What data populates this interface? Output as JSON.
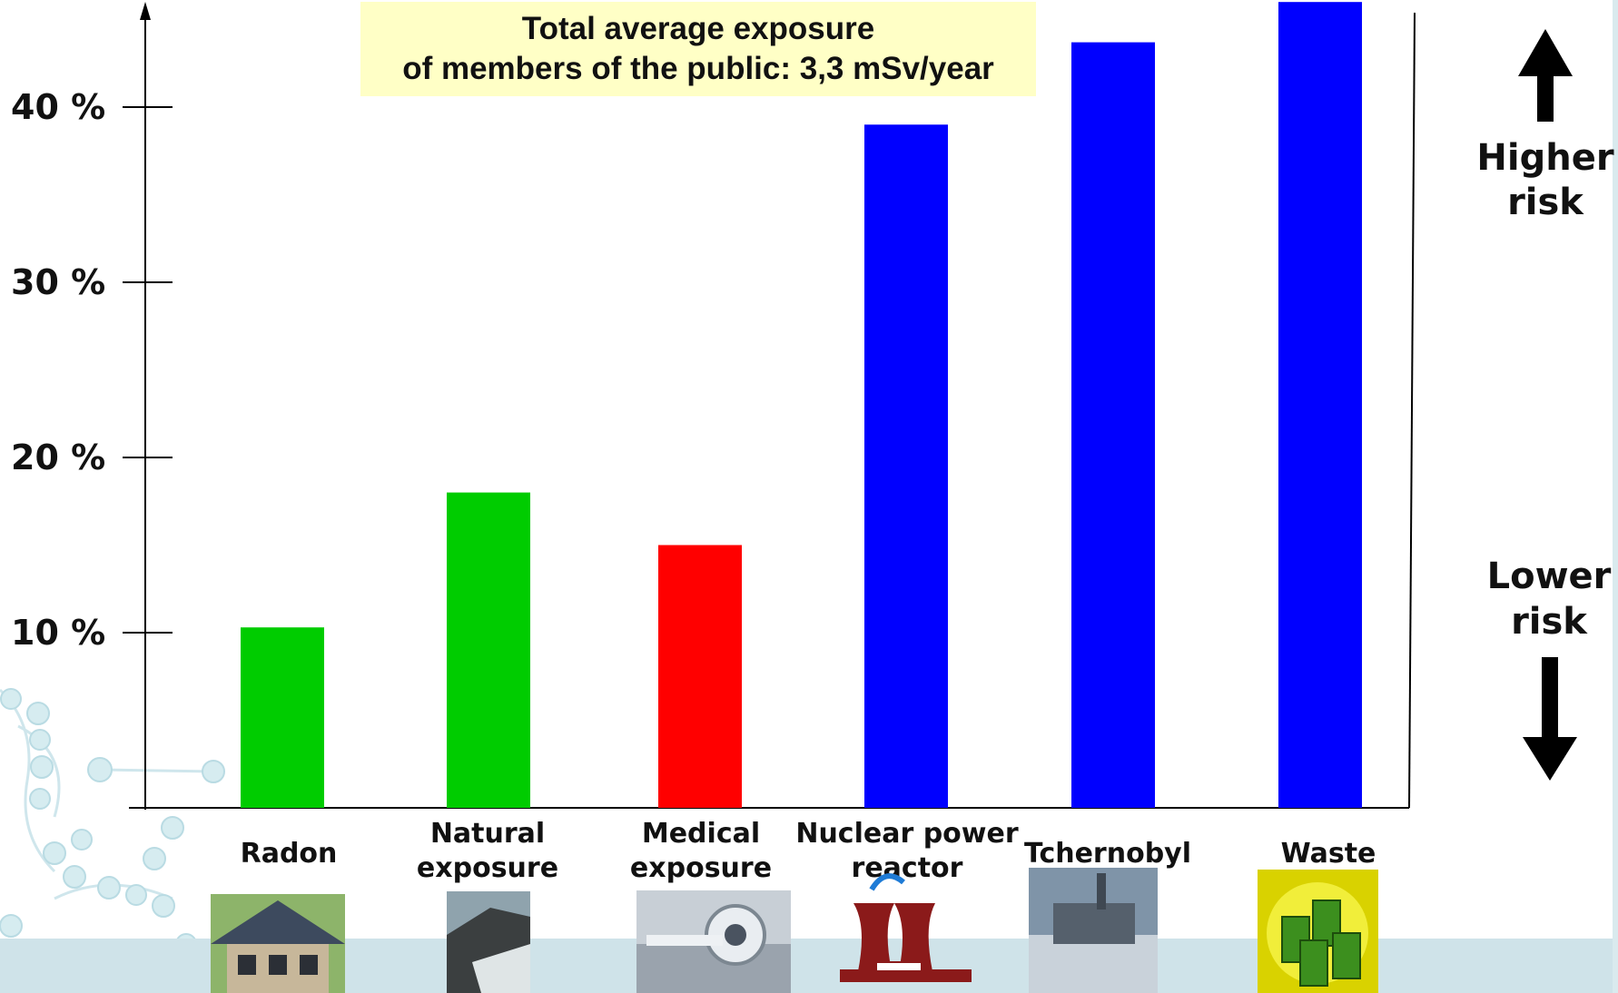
{
  "chart_data": {
    "type": "bar",
    "title": [
      "Total average exposure",
      "of members of the public: 3,3 mSv/year"
    ],
    "yticks": [
      "10 %",
      "20 %",
      "30 %",
      "40 %"
    ],
    "ytick_values": [
      10,
      20,
      30,
      40
    ],
    "ylim": [
      0,
      46
    ],
    "categories": [
      [
        "Radon"
      ],
      [
        "Natural",
        "exposure"
      ],
      [
        "Medical",
        "exposure"
      ],
      [
        "Nuclear power",
        "reactor"
      ],
      [
        "Tchernobyl"
      ],
      [
        "Waste"
      ]
    ],
    "values": [
      10.3,
      18.0,
      15.0,
      39.0,
      43.7,
      46.0
    ],
    "bar_colors": [
      "#00cc00",
      "#00cc00",
      "#ff0000",
      "#0000ff",
      "#0000ff",
      "#0000ff"
    ],
    "side_labels": {
      "higher": [
        "Higher",
        "risk"
      ],
      "lower": [
        "Lower",
        "risk"
      ]
    },
    "icons": [
      "house-photo",
      "coast-photo",
      "ct-scanner-photo",
      "power-plant-icon",
      "chernobyl-plant-photo",
      "waste-barrels-icon"
    ],
    "grid": false
  }
}
